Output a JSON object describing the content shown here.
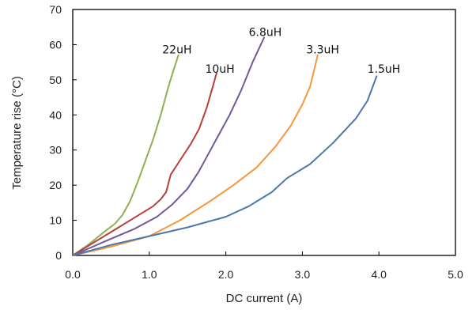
{
  "chart_data": {
    "type": "line",
    "title": "",
    "xlabel": "DC current (A)",
    "ylabel": "Temperature rise (°C)",
    "xlim": [
      0,
      5
    ],
    "ylim": [
      0,
      70
    ],
    "x_ticks": [
      "0.0",
      "1.0",
      "2.0",
      "3.0",
      "4.0",
      "5.0"
    ],
    "y_ticks": [
      "0",
      "10",
      "20",
      "30",
      "40",
      "50",
      "60",
      "70"
    ],
    "grid": false,
    "series": [
      {
        "name": "22uH",
        "color": "#8fb04f",
        "points": [
          [
            0,
            0
          ],
          [
            0.2,
            3
          ],
          [
            0.4,
            6.5
          ],
          [
            0.55,
            9
          ],
          [
            0.65,
            11.5
          ],
          [
            0.75,
            15.5
          ],
          [
            0.85,
            21
          ],
          [
            0.95,
            27
          ],
          [
            1.05,
            33
          ],
          [
            1.15,
            40
          ],
          [
            1.25,
            48
          ],
          [
            1.32,
            53
          ],
          [
            1.38,
            57
          ]
        ]
      },
      {
        "name": "10uH",
        "color": "#b5403d",
        "points": [
          [
            0,
            0
          ],
          [
            0.3,
            4
          ],
          [
            0.6,
            8
          ],
          [
            0.9,
            12
          ],
          [
            1.05,
            14
          ],
          [
            1.15,
            16
          ],
          [
            1.22,
            18
          ],
          [
            1.28,
            23
          ],
          [
            1.4,
            27
          ],
          [
            1.55,
            32
          ],
          [
            1.65,
            36
          ],
          [
            1.75,
            42
          ],
          [
            1.83,
            48
          ],
          [
            1.88,
            52
          ]
        ]
      },
      {
        "name": "6.8uH",
        "color": "#71589b",
        "points": [
          [
            0,
            0
          ],
          [
            0.4,
            3.8
          ],
          [
            0.8,
            7.5
          ],
          [
            1.1,
            11
          ],
          [
            1.3,
            14.5
          ],
          [
            1.5,
            19
          ],
          [
            1.65,
            24
          ],
          [
            1.8,
            30
          ],
          [
            1.9,
            34
          ],
          [
            2.05,
            40
          ],
          [
            2.2,
            47
          ],
          [
            2.35,
            55
          ],
          [
            2.5,
            62
          ]
        ]
      },
      {
        "name": "3.3uH",
        "color": "#f7963c",
        "points": [
          [
            0,
            0
          ],
          [
            0.5,
            2.5
          ],
          [
            1.0,
            5.5
          ],
          [
            1.4,
            10
          ],
          [
            1.8,
            15.5
          ],
          [
            2.1,
            20
          ],
          [
            2.4,
            25
          ],
          [
            2.65,
            31
          ],
          [
            2.85,
            37
          ],
          [
            3.0,
            43
          ],
          [
            3.1,
            48
          ],
          [
            3.2,
            57
          ]
        ]
      },
      {
        "name": "1.5uH",
        "color": "#4a78ad",
        "points": [
          [
            0,
            0
          ],
          [
            0.5,
            3
          ],
          [
            1.0,
            5.5
          ],
          [
            1.5,
            8
          ],
          [
            2.0,
            11
          ],
          [
            2.3,
            14
          ],
          [
            2.6,
            18
          ],
          [
            2.8,
            22
          ],
          [
            3.1,
            26
          ],
          [
            3.4,
            32
          ],
          [
            3.7,
            39
          ],
          [
            3.85,
            44
          ],
          [
            3.97,
            51
          ]
        ]
      }
    ],
    "annotations": [
      {
        "text": "22uH",
        "x": 1.17,
        "y": 57.5
      },
      {
        "text": "10uH",
        "x": 1.73,
        "y": 52
      },
      {
        "text": "6.8uH",
        "x": 2.3,
        "y": 62.5
      },
      {
        "text": "3.3uH",
        "x": 3.05,
        "y": 57.5
      },
      {
        "text": "1.5uH",
        "x": 3.85,
        "y": 52
      }
    ]
  }
}
